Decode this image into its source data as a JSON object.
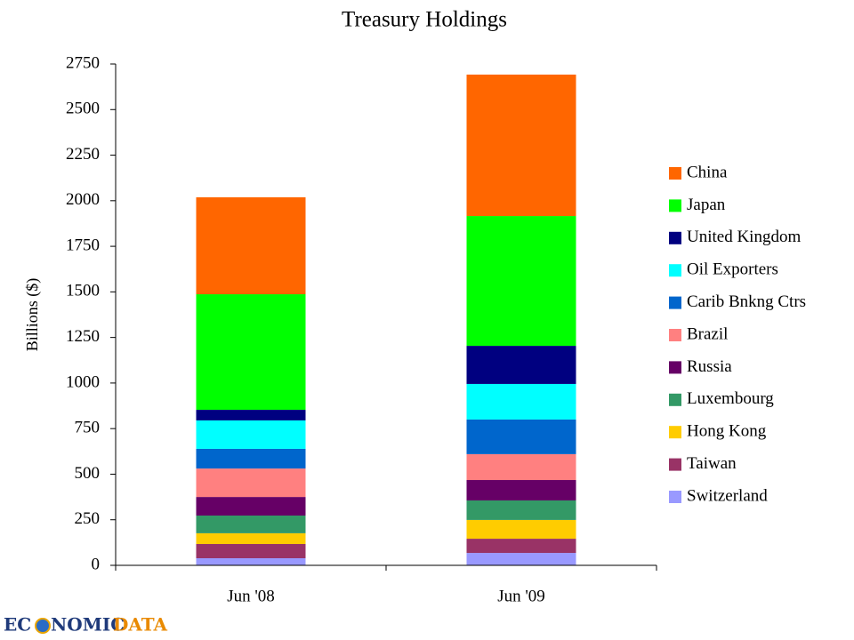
{
  "chart_data": {
    "type": "stacked_bar",
    "title": "Treasury Holdings",
    "y_label": "Billions ($)",
    "categories": [
      "Jun '08",
      "Jun '09"
    ],
    "series": [
      {
        "name": "Switzerland",
        "color": "#9999ff",
        "values": [
          39,
          68
        ]
      },
      {
        "name": "Taiwan",
        "color": "#993366",
        "values": [
          78,
          78
        ]
      },
      {
        "name": "Hong Kong",
        "color": "#ffcc00",
        "values": [
          59,
          103
        ]
      },
      {
        "name": "Luxembourg",
        "color": "#339966",
        "values": [
          97,
          107
        ]
      },
      {
        "name": "Russia",
        "color": "#660066",
        "values": [
          102,
          112
        ]
      },
      {
        "name": "Brazil",
        "color": "#ff8080",
        "values": [
          156,
          142
        ]
      },
      {
        "name": "Carib Bnkng Ctrs",
        "color": "#0066cc",
        "values": [
          108,
          190
        ]
      },
      {
        "name": "Oil Exporters",
        "color": "#00ffff",
        "values": [
          156,
          195
        ]
      },
      {
        "name": "United Kingdom",
        "color": "#000080",
        "values": [
          58,
          209
        ]
      },
      {
        "name": "Japan",
        "color": "#00ff00",
        "values": [
          634,
          712
        ]
      },
      {
        "name": "China",
        "color": "#ff6600",
        "values": [
          532,
          776
        ]
      }
    ],
    "ylim": [
      0,
      2750
    ],
    "yticks": [
      0,
      250,
      500,
      750,
      1000,
      1250,
      1500,
      1750,
      2000,
      2250,
      2500,
      2750
    ],
    "grid": false,
    "legend": "right"
  },
  "footer": {
    "logo_left": "EC",
    "logo_mid": "NOMIC",
    "logo_right": "DATA"
  }
}
